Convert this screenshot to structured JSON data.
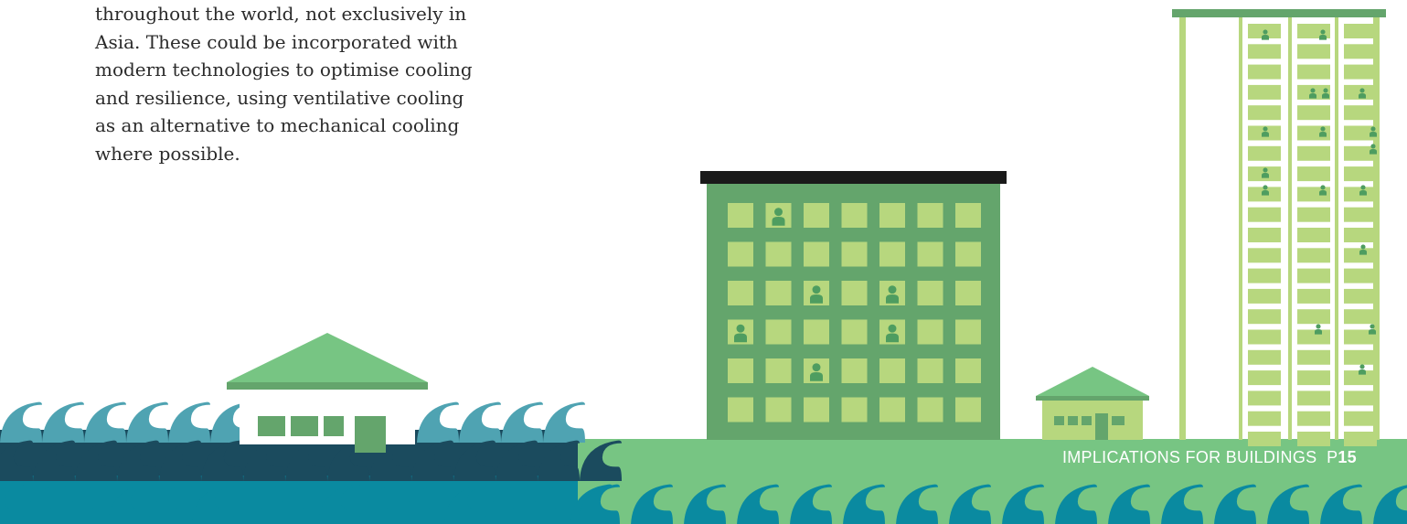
{
  "body_text": {
    "lines": [
      "throughout the world, not exclusively in",
      "Asia. These could be incorporated with",
      "modern technologies to optimise cooling",
      "and resilience, using ventilative cooling",
      "as an alternative to mechanical cooling",
      "where possible."
    ]
  },
  "footer": {
    "section_title": "IMPLICATIONS FOR BUILDINGS",
    "page_prefix": "P",
    "page_number": "15"
  },
  "colors": {
    "ground_green": "#77c583",
    "building_green": "#64a56c",
    "window_green": "#b7d77e",
    "roof_black": "#1a1a1a",
    "wave_light": "#4fa3b2",
    "wave_dark": "#1b4b5e",
    "wave_mid": "#0a8aa0",
    "person_green": "#4e9d60"
  }
}
